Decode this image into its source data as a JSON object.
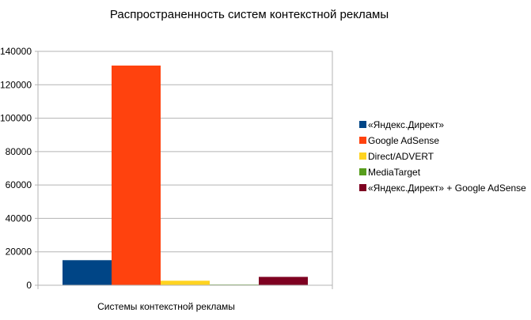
{
  "chart_data": {
    "type": "bar",
    "title": "Распространенность систем контекстной рекламы",
    "xlabel": "",
    "ylabel": "",
    "categories": [
      "Системы контекстной рекламы"
    ],
    "series": [
      {
        "name": "«Яндекс.Директ»",
        "values": [
          15000
        ],
        "color": "#004586"
      },
      {
        "name": "Google AdSense",
        "values": [
          131500
        ],
        "color": "#ff420e"
      },
      {
        "name": "Direct/ADVERT",
        "values": [
          2700
        ],
        "color": "#ffd320"
      },
      {
        "name": "MediaTarget",
        "values": [
          400
        ],
        "color": "#579d1c"
      },
      {
        "name": "«Яндекс.Директ» + Google AdSense",
        "values": [
          5000
        ],
        "color": "#7e0021"
      }
    ],
    "ylim": [
      0,
      140000
    ],
    "yticks": [
      "0",
      "20000",
      "40000",
      "60000",
      "80000",
      "100000",
      "120000",
      "140000"
    ],
    "grid": true,
    "legend": "right"
  }
}
